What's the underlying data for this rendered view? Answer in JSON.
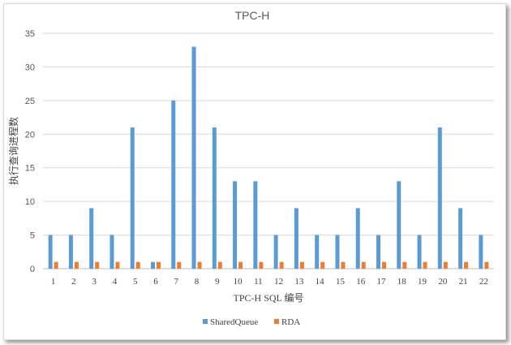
{
  "chart_data": {
    "type": "bar",
    "title": "TPC-H",
    "xlabel": "TPC-H SQL 编号",
    "ylabel": "执行查询进程数",
    "categories": [
      "1",
      "2",
      "3",
      "4",
      "5",
      "6",
      "7",
      "8",
      "9",
      "10",
      "11",
      "12",
      "13",
      "14",
      "15",
      "16",
      "17",
      "18",
      "19",
      "20",
      "21",
      "22"
    ],
    "series": [
      {
        "name": "SharedQueue",
        "color": "#5B9BD5",
        "values": [
          5,
          5,
          9,
          5,
          21,
          1,
          25,
          33,
          21,
          13,
          13,
          5,
          9,
          5,
          5,
          9,
          5,
          13,
          5,
          21,
          9,
          5
        ]
      },
      {
        "name": "RDA",
        "color": "#ED7D31",
        "values": [
          1,
          1,
          1,
          1,
          1,
          1,
          1,
          1,
          1,
          1,
          1,
          1,
          1,
          1,
          1,
          1,
          1,
          1,
          1,
          1,
          1,
          1
        ]
      }
    ],
    "ylim": [
      0,
      35
    ],
    "yticks": [
      "0",
      "5",
      "10",
      "15",
      "20",
      "25",
      "30",
      "35"
    ],
    "grid": true,
    "legend": "bottom"
  }
}
